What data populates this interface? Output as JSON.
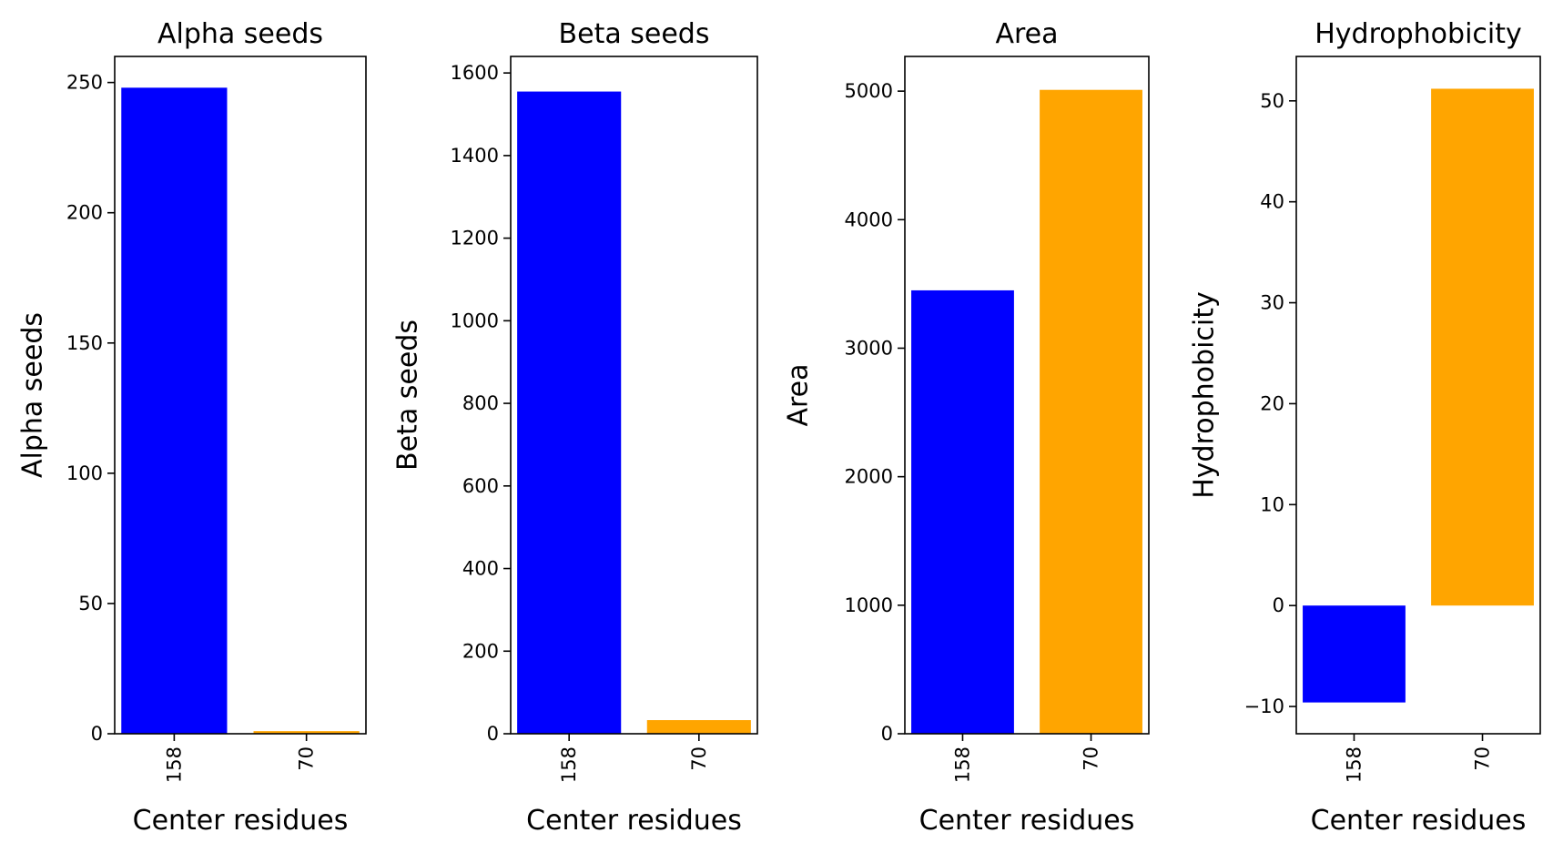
{
  "figure": {
    "background": "#ffffff"
  },
  "chart_data": [
    {
      "type": "bar",
      "title": "Alpha seeds",
      "xlabel": "Center residues",
      "ylabel": "Alpha seeds",
      "categories": [
        "158",
        "70"
      ],
      "values": [
        248,
        1
      ],
      "colors": [
        "#0000ff",
        "#ffa500"
      ],
      "ylim": [
        0,
        260
      ],
      "yticks": [
        0,
        50,
        100,
        150,
        200,
        250
      ],
      "ytick_labels": [
        "0",
        "50",
        "100",
        "150",
        "200",
        "250"
      ]
    },
    {
      "type": "bar",
      "title": "Beta seeds",
      "xlabel": "Center residues",
      "ylabel": "Beta seeds",
      "categories": [
        "158",
        "70"
      ],
      "values": [
        1555,
        33
      ],
      "colors": [
        "#0000ff",
        "#ffa500"
      ],
      "ylim": [
        0,
        1640
      ],
      "yticks": [
        0,
        200,
        400,
        600,
        800,
        1000,
        1200,
        1400,
        1600
      ],
      "ytick_labels": [
        "0",
        "200",
        "400",
        "600",
        "800",
        "1000",
        "1200",
        "1400",
        "1600"
      ]
    },
    {
      "type": "bar",
      "title": "Area",
      "xlabel": "Center residues",
      "ylabel": "Area",
      "categories": [
        "158",
        "70"
      ],
      "values": [
        3450,
        5010
      ],
      "colors": [
        "#0000ff",
        "#ffa500"
      ],
      "ylim": [
        0,
        5270
      ],
      "yticks": [
        0,
        1000,
        2000,
        3000,
        4000,
        5000
      ],
      "ytick_labels": [
        "0",
        "1000",
        "2000",
        "3000",
        "4000",
        "5000"
      ]
    },
    {
      "type": "bar",
      "title": "Hydrophobicity",
      "xlabel": "Center residues",
      "ylabel": "Hydrophobicity",
      "categories": [
        "158",
        "70"
      ],
      "values": [
        -9.6,
        51.2
      ],
      "colors": [
        "#0000ff",
        "#ffa500"
      ],
      "ylim": [
        -12.7,
        54.4
      ],
      "yticks": [
        -10,
        0,
        10,
        20,
        30,
        40,
        50
      ],
      "ytick_labels": [
        "−10",
        "0",
        "10",
        "20",
        "30",
        "40",
        "50"
      ]
    }
  ]
}
